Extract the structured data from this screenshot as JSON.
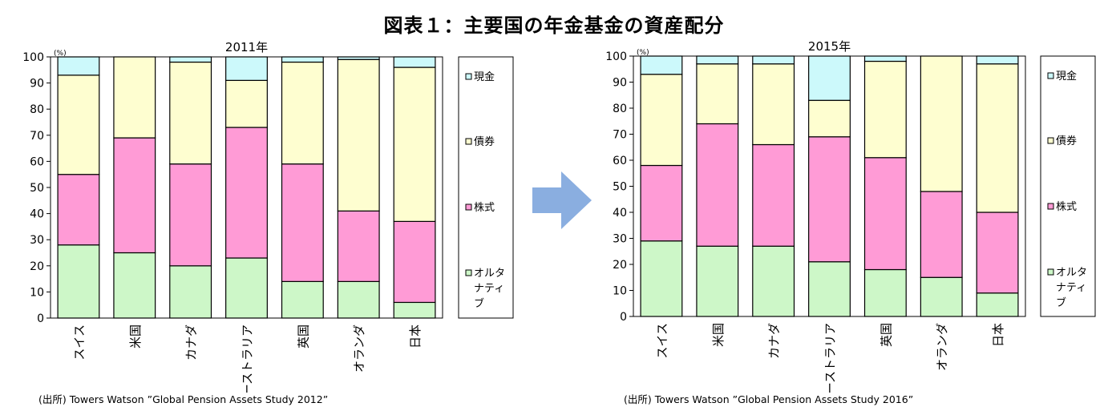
{
  "main_title": "図表１：主要国の年金基金の資産配分",
  "colors": {
    "現金": "#ccf9fb",
    "債券": "#fefed0",
    "株式": "#ff9bd6",
    "オルタナティブ": "#cdf7c8"
  },
  "chart_data": [
    {
      "type": "bar",
      "stacked": true,
      "title": "2011年",
      "unit_label": "(%)",
      "categories": [
        "スイス",
        "米国",
        "カナダ",
        "オーストラリア",
        "英国",
        "オランダ",
        "日本"
      ],
      "ylim": [
        0,
        100
      ],
      "yticks": [
        0,
        10,
        20,
        30,
        40,
        50,
        60,
        70,
        80,
        90,
        100
      ],
      "legend_position": "right",
      "series": [
        {
          "name": "オルタナティブ",
          "legend_label": [
            "オルタ",
            "ナティ",
            "ブ"
          ],
          "values": [
            28,
            25,
            20,
            23,
            14,
            14,
            6
          ]
        },
        {
          "name": "株式",
          "legend_label": [
            "株式"
          ],
          "values": [
            27,
            44,
            39,
            50,
            45,
            27,
            31
          ]
        },
        {
          "name": "債券",
          "legend_label": [
            "債券"
          ],
          "values": [
            38,
            31,
            39,
            18,
            39,
            58,
            59
          ]
        },
        {
          "name": "現金",
          "legend_label": [
            "現金"
          ],
          "values": [
            7,
            0,
            2,
            9,
            2,
            1,
            4
          ]
        }
      ],
      "source": "(出所) Towers Watson ”Global Pension Assets Study 2012”"
    },
    {
      "type": "bar",
      "stacked": true,
      "title": "2015年",
      "unit_label": "(%)",
      "categories": [
        "スイス",
        "米国",
        "カナダ",
        "オーストラリア",
        "英国",
        "オランダ",
        "日本"
      ],
      "ylim": [
        0,
        100
      ],
      "yticks": [
        0,
        10,
        20,
        30,
        40,
        50,
        60,
        70,
        80,
        90,
        100
      ],
      "legend_position": "right",
      "series": [
        {
          "name": "オルタナティブ",
          "legend_label": [
            "オルタ",
            "ナティ",
            "ブ"
          ],
          "values": [
            29,
            27,
            27,
            21,
            18,
            15,
            9
          ]
        },
        {
          "name": "株式",
          "legend_label": [
            "株式"
          ],
          "values": [
            29,
            47,
            39,
            48,
            43,
            33,
            31
          ]
        },
        {
          "name": "債券",
          "legend_label": [
            "債券"
          ],
          "values": [
            35,
            23,
            31,
            14,
            37,
            52,
            57
          ]
        },
        {
          "name": "現金",
          "legend_label": [
            "現金"
          ],
          "values": [
            7,
            3,
            3,
            17,
            2,
            0,
            3
          ]
        }
      ],
      "source": "(出所) Towers Watson ”Global Pension Assets Study 2016”"
    }
  ]
}
